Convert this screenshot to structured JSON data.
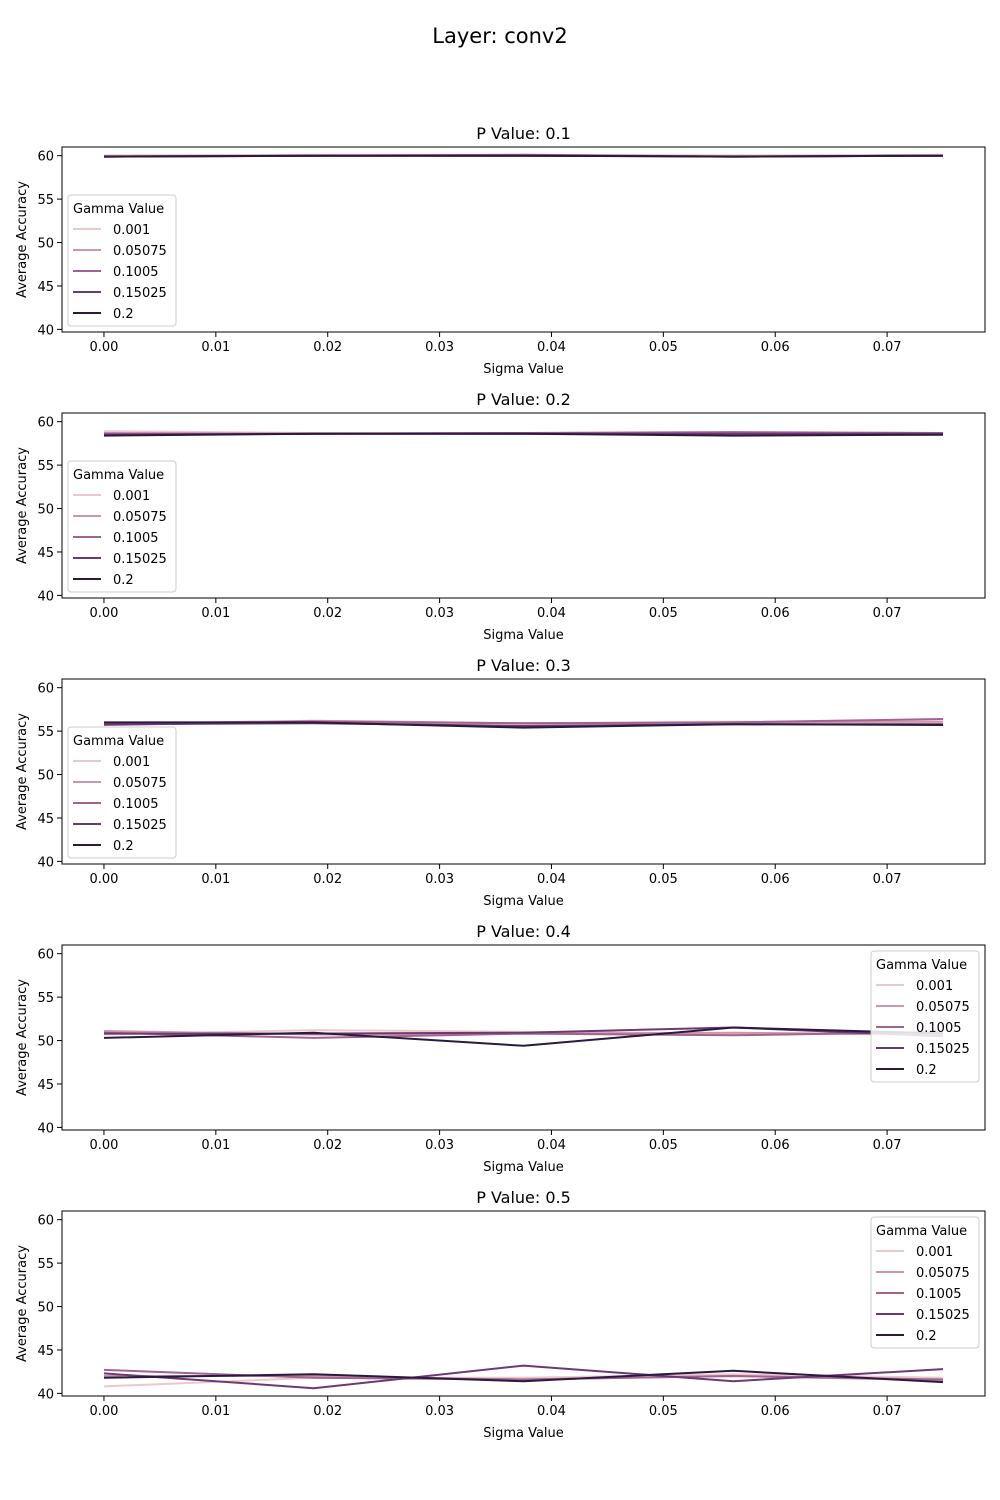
{
  "figure": {
    "suptitle": "Layer: conv2"
  },
  "colors": {
    "0.001": "#ecc8cd",
    "0.05075": "#cf95ab",
    "0.1005": "#a3638f",
    "0.15025": "#6b3a74",
    "0.2": "#2a1a3e"
  },
  "chart_data": [
    {
      "type": "line",
      "title": "P Value: 0.1",
      "xlabel": "Sigma Value",
      "ylabel": "Average Accuracy",
      "xlim": [
        -0.00375,
        0.07875
      ],
      "ylim": [
        39.7,
        61.0
      ],
      "xticks": [
        "0.00",
        "0.01",
        "0.02",
        "0.03",
        "0.04",
        "0.05",
        "0.06",
        "0.07"
      ],
      "yticks": [
        "40",
        "45",
        "50",
        "55",
        "60"
      ],
      "legend": {
        "title": "Gamma Value",
        "loc": "lower-left"
      },
      "x": [
        0.0,
        0.01875,
        0.0375,
        0.05625,
        0.075
      ],
      "series": [
        {
          "name": "0.001",
          "values": [
            60.0,
            60.1,
            60.1,
            60.0,
            60.1
          ]
        },
        {
          "name": "0.05075",
          "values": [
            60.0,
            60.0,
            60.0,
            60.0,
            60.0
          ]
        },
        {
          "name": "0.1005",
          "values": [
            59.9,
            60.0,
            60.1,
            59.9,
            60.0
          ]
        },
        {
          "name": "0.15025",
          "values": [
            59.9,
            60.0,
            60.0,
            59.9,
            60.0
          ]
        },
        {
          "name": "0.2",
          "values": [
            59.9,
            60.0,
            60.0,
            59.9,
            60.0
          ]
        }
      ]
    },
    {
      "type": "line",
      "title": "P Value: 0.2",
      "xlabel": "Sigma Value",
      "ylabel": "Average Accuracy",
      "xlim": [
        -0.00375,
        0.07875
      ],
      "ylim": [
        39.7,
        61.0
      ],
      "xticks": [
        "0.00",
        "0.01",
        "0.02",
        "0.03",
        "0.04",
        "0.05",
        "0.06",
        "0.07"
      ],
      "yticks": [
        "40",
        "45",
        "50",
        "55",
        "60"
      ],
      "legend": {
        "title": "Gamma Value",
        "loc": "lower-left"
      },
      "x": [
        0.0,
        0.01875,
        0.0375,
        0.05625,
        0.075
      ],
      "series": [
        {
          "name": "0.001",
          "values": [
            58.9,
            58.7,
            58.7,
            58.6,
            58.7
          ]
        },
        {
          "name": "0.05075",
          "values": [
            58.7,
            58.6,
            58.7,
            58.7,
            58.7
          ]
        },
        {
          "name": "0.1005",
          "values": [
            58.6,
            58.6,
            58.7,
            58.8,
            58.7
          ]
        },
        {
          "name": "0.15025",
          "values": [
            58.5,
            58.6,
            58.6,
            58.6,
            58.6
          ]
        },
        {
          "name": "0.2",
          "values": [
            58.4,
            58.6,
            58.6,
            58.4,
            58.5
          ]
        }
      ]
    },
    {
      "type": "line",
      "title": "P Value: 0.3",
      "xlabel": "Sigma Value",
      "ylabel": "Average Accuracy",
      "xlim": [
        -0.00375,
        0.07875
      ],
      "ylim": [
        39.7,
        61.0
      ],
      "xticks": [
        "0.00",
        "0.01",
        "0.02",
        "0.03",
        "0.04",
        "0.05",
        "0.06",
        "0.07"
      ],
      "yticks": [
        "40",
        "45",
        "50",
        "55",
        "60"
      ],
      "legend": {
        "title": "Gamma Value",
        "loc": "lower-left"
      },
      "x": [
        0.0,
        0.01875,
        0.0375,
        0.05625,
        0.075
      ],
      "series": [
        {
          "name": "0.001",
          "values": [
            55.9,
            56.0,
            55.9,
            56.1,
            56.0
          ]
        },
        {
          "name": "0.05075",
          "values": [
            55.8,
            56.2,
            55.9,
            56.0,
            56.1
          ]
        },
        {
          "name": "0.1005",
          "values": [
            55.7,
            56.1,
            55.9,
            56.0,
            56.4
          ]
        },
        {
          "name": "0.15025",
          "values": [
            55.8,
            55.9,
            55.6,
            55.8,
            55.8
          ]
        },
        {
          "name": "0.2",
          "values": [
            56.0,
            56.0,
            55.4,
            55.8,
            55.7
          ]
        }
      ]
    },
    {
      "type": "line",
      "title": "P Value: 0.4",
      "xlabel": "Sigma Value",
      "ylabel": "Average Accuracy",
      "xlim": [
        -0.00375,
        0.07875
      ],
      "ylim": [
        39.7,
        61.0
      ],
      "xticks": [
        "0.00",
        "0.01",
        "0.02",
        "0.03",
        "0.04",
        "0.05",
        "0.06",
        "0.07"
      ],
      "yticks": [
        "40",
        "45",
        "50",
        "55",
        "60"
      ],
      "legend": {
        "title": "Gamma Value",
        "loc": "upper-right"
      },
      "x": [
        0.0,
        0.01875,
        0.0375,
        0.05625,
        0.075
      ],
      "series": [
        {
          "name": "0.001",
          "values": [
            50.7,
            51.2,
            51.0,
            50.8,
            50.7
          ]
        },
        {
          "name": "0.05075",
          "values": [
            51.1,
            50.7,
            50.8,
            50.9,
            50.7
          ]
        },
        {
          "name": "0.1005",
          "values": [
            50.9,
            50.3,
            50.8,
            50.6,
            51.0
          ]
        },
        {
          "name": "0.15025",
          "values": [
            50.8,
            50.8,
            50.9,
            51.5,
            50.5
          ]
        },
        {
          "name": "0.2",
          "values": [
            50.3,
            50.9,
            49.4,
            51.5,
            50.8
          ]
        }
      ]
    },
    {
      "type": "line",
      "title": "P Value: 0.5",
      "xlabel": "Sigma Value",
      "ylabel": "Average Accuracy",
      "xlim": [
        -0.00375,
        0.07875
      ],
      "ylim": [
        39.7,
        61.0
      ],
      "xticks": [
        "0.00",
        "0.01",
        "0.02",
        "0.03",
        "0.04",
        "0.05",
        "0.06",
        "0.07"
      ],
      "yticks": [
        "40",
        "45",
        "50",
        "55",
        "60"
      ],
      "legend": {
        "title": "Gamma Value",
        "loc": "upper-right"
      },
      "x": [
        0.0,
        0.01875,
        0.0375,
        0.05625,
        0.075
      ],
      "series": [
        {
          "name": "0.001",
          "values": [
            40.8,
            41.8,
            41.8,
            42.2,
            41.8
          ]
        },
        {
          "name": "0.05075",
          "values": [
            42.0,
            42.0,
            41.6,
            42.0,
            41.5
          ]
        },
        {
          "name": "0.1005",
          "values": [
            42.7,
            41.8,
            41.6,
            42.0,
            41.6
          ]
        },
        {
          "name": "0.15025",
          "values": [
            42.3,
            40.6,
            43.2,
            41.4,
            42.8
          ]
        },
        {
          "name": "0.2",
          "values": [
            41.8,
            42.2,
            41.4,
            42.6,
            41.3
          ]
        }
      ]
    }
  ]
}
